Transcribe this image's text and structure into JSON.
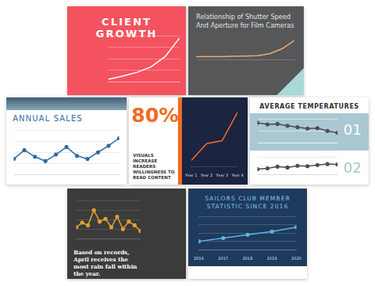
{
  "chart_data": [
    {
      "type": "line",
      "title": "CLIENT GROWTH",
      "categories": [
        null,
        null,
        null,
        null,
        null,
        null
      ],
      "values": [
        5,
        12,
        20,
        32,
        55,
        95
      ],
      "color": "#ffffff",
      "ylim": [
        0,
        100
      ],
      "yticks": [
        0,
        25,
        50,
        75,
        100
      ],
      "grid": true,
      "tick_labels": false
    },
    {
      "type": "line",
      "title": "Relationship of Shutter Speed And Aperture for Film Cameras",
      "categories": [
        null,
        null,
        null,
        null,
        null,
        null,
        null,
        null,
        null
      ],
      "values": [
        12,
        12,
        12,
        13,
        14,
        16,
        24,
        45,
        80
      ],
      "color": "#f0a86a",
      "ylim": [
        0,
        100
      ],
      "yticks": [
        0,
        25,
        50,
        75,
        100
      ],
      "grid": false,
      "tick_labels": false
    },
    {
      "type": "line",
      "title": "ANNUAL SALES",
      "categories": [
        null,
        null,
        null,
        null,
        null,
        null,
        null,
        null,
        null,
        null,
        null
      ],
      "values": [
        35,
        55,
        40,
        30,
        45,
        62,
        42,
        35,
        50,
        65,
        82
      ],
      "color": "#2f6aa3",
      "marker": "circle",
      "ylim": [
        0,
        100
      ],
      "yticks": [
        0,
        25,
        50,
        75,
        100
      ],
      "grid": true,
      "tick_labels": false
    },
    {
      "type": "line",
      "annotations": [
        "80%",
        "VISUALS INCREASE READERS WILLINGNESS TO READ CONTENT"
      ],
      "categories": [
        "Year 1",
        "Year 2",
        "Year 3",
        "Year 4"
      ],
      "values": [
        10,
        40,
        45,
        95
      ],
      "color": "#f26b21",
      "ylim": [
        0,
        100
      ],
      "yticks": [
        0,
        25,
        50,
        75,
        100
      ],
      "grid": false,
      "tick_labels": "x"
    },
    {
      "type": "line",
      "title": "AVERAGE TEMPERATURES",
      "annotations": [
        "01"
      ],
      "categories": [
        null,
        null,
        null,
        null,
        null,
        null,
        null,
        null,
        null
      ],
      "values": [
        85,
        78,
        80,
        72,
        66,
        60,
        62,
        50,
        42
      ],
      "color": "#4a4f55",
      "marker": "circle",
      "ylim": [
        0,
        100
      ],
      "yticks": [
        0,
        50,
        100
      ],
      "grid": true,
      "tick_labels": false
    },
    {
      "type": "line",
      "annotations": [
        "02"
      ],
      "categories": [
        null,
        null,
        null,
        null,
        null,
        null,
        null,
        null,
        null
      ],
      "values": [
        30,
        35,
        45,
        40,
        50,
        48,
        55,
        60,
        58
      ],
      "color": "#4a4f55",
      "marker": "circle",
      "ylim": [
        0,
        100
      ],
      "yticks": [
        0,
        50,
        100
      ],
      "grid": true,
      "tick_labels": false
    },
    {
      "type": "line",
      "annotations": [
        "Based on records, April receives the most rain fall within the year."
      ],
      "categories": [
        null,
        null,
        null,
        null,
        null,
        null,
        null,
        null,
        null,
        null,
        null,
        null
      ],
      "values": [
        30,
        42,
        35,
        75,
        45,
        52,
        30,
        58,
        25,
        45,
        35,
        20
      ],
      "color": "#e0a030",
      "marker": "circle",
      "ylim": [
        0,
        100
      ],
      "yticks": [
        0,
        25,
        50,
        75,
        100
      ],
      "grid": true,
      "tick_labels": false
    },
    {
      "type": "line",
      "title": "SAILORS CLUB MEMBER STATISTIC SINCE 2016",
      "categories": [
        "2016",
        "2017",
        "2018",
        "2019",
        "2020"
      ],
      "values": [
        25,
        35,
        45,
        55,
        68
      ],
      "color": "#5fb3e4",
      "marker": "circle",
      "ylim": [
        0,
        100
      ],
      "yticks": [
        0,
        25,
        50,
        75,
        100
      ],
      "grid": true,
      "tick_labels": "x"
    }
  ]
}
